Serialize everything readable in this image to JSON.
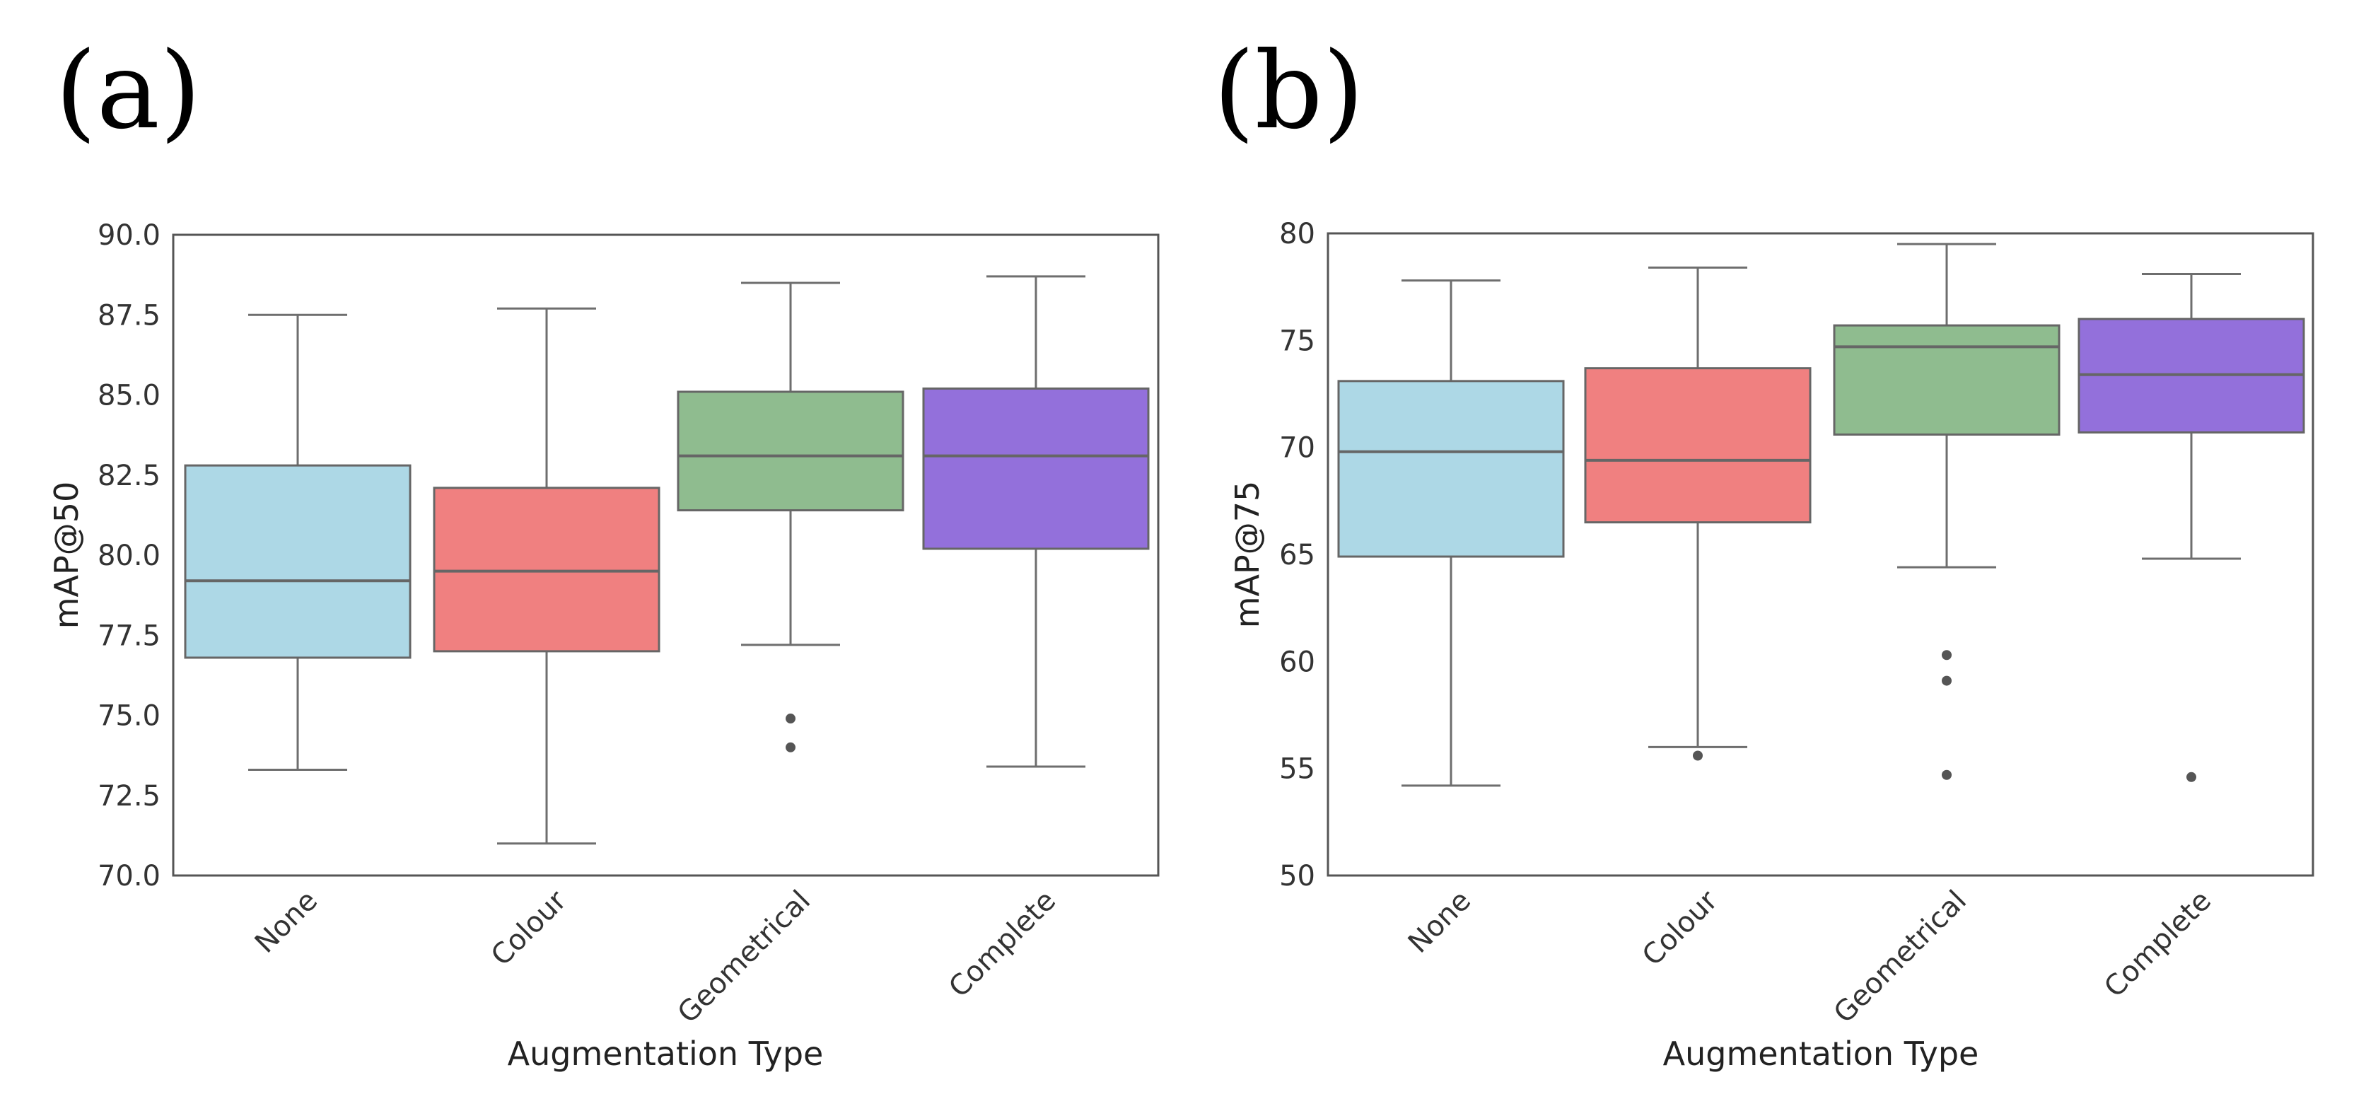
{
  "chart_data": [
    {
      "type": "boxplot",
      "panel_label": "(a)",
      "title": "",
      "xlabel": "Augmentation Type",
      "ylabel": "mAP@50",
      "ylim": [
        70.0,
        90.0
      ],
      "yticks": [
        "70.0",
        "72.5",
        "75.0",
        "77.5",
        "80.0",
        "82.5",
        "85.0",
        "87.5",
        "90.0"
      ],
      "grid": false,
      "categories": [
        "None",
        "Colour",
        "Geometrical",
        "Complete"
      ],
      "colors": [
        "#add8e6",
        "#f08080",
        "#8fbc8f",
        "#9370db"
      ],
      "boxes": [
        {
          "whislo": 73.3,
          "q1": 76.8,
          "med": 79.2,
          "q3": 82.8,
          "whishi": 87.5,
          "fliers": []
        },
        {
          "whislo": 71.0,
          "q1": 77.0,
          "med": 79.5,
          "q3": 82.1,
          "whishi": 87.7,
          "fliers": []
        },
        {
          "whislo": 77.2,
          "q1": 81.4,
          "med": 83.1,
          "q3": 85.1,
          "whishi": 88.5,
          "fliers": [
            74.9,
            74.0
          ]
        },
        {
          "whislo": 73.4,
          "q1": 80.2,
          "med": 83.1,
          "q3": 85.2,
          "whishi": 88.7,
          "fliers": []
        }
      ]
    },
    {
      "type": "boxplot",
      "panel_label": "(b)",
      "title": "",
      "xlabel": "Augmentation Type",
      "ylabel": "mAP@75",
      "ylim": [
        50,
        80
      ],
      "yticks": [
        "50",
        "55",
        "60",
        "65",
        "70",
        "75",
        "80"
      ],
      "grid": false,
      "categories": [
        "None",
        "Colour",
        "Geometrical",
        "Complete"
      ],
      "colors": [
        "#add8e6",
        "#f08080",
        "#8fbc8f",
        "#9370db"
      ],
      "boxes": [
        {
          "whislo": 54.2,
          "q1": 64.9,
          "med": 69.8,
          "q3": 73.1,
          "whishi": 77.8,
          "fliers": []
        },
        {
          "whislo": 56.0,
          "q1": 66.5,
          "med": 69.4,
          "q3": 73.7,
          "whishi": 78.4,
          "fliers": [
            55.6
          ]
        },
        {
          "whislo": 64.4,
          "q1": 70.6,
          "med": 74.7,
          "q3": 75.7,
          "whishi": 79.5,
          "fliers": [
            60.3,
            59.1,
            54.7
          ]
        },
        {
          "whislo": 64.8,
          "q1": 70.7,
          "med": 73.4,
          "q3": 76.0,
          "whishi": 78.1,
          "fliers": [
            54.6
          ]
        }
      ]
    }
  ]
}
